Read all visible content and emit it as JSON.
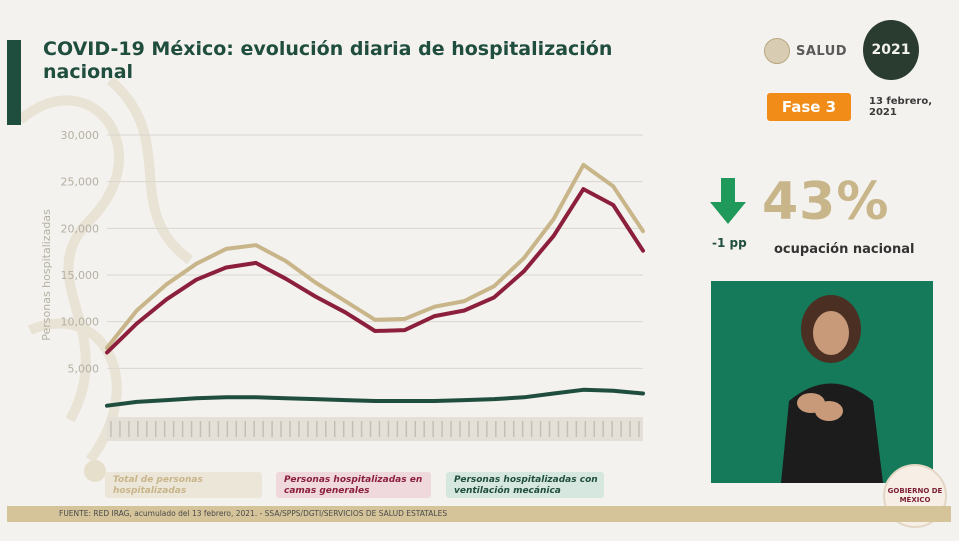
{
  "header": {
    "title": "COVID-19 México: evolución diaria de hospitalización nacional",
    "salud_label": "SALUD",
    "logo_year": "2021",
    "fase_label": "Fase 3",
    "date": "13 febrero, 2021"
  },
  "kpi": {
    "change": "-1 pp",
    "percent": "43%",
    "label": "ocupación nacional"
  },
  "legend": {
    "total": "Total de personas hospitalizadas",
    "general": "Personas hospitalizadas en camas generales",
    "ventilation": "Personas hospitalizadas con ventilación mecánica"
  },
  "footer": {
    "source": "FUENTE: RED IRAG, acumulado del 13 febrero, 2021.  -  SSA/SPPS/DGTI/SERVICIOS DE SALUD ESTATALES"
  },
  "gob_label": "GOBIERNO DE MÉXICO",
  "colors": {
    "total": "#c8b58a",
    "general": "#8b1f3c",
    "ventilation": "#1f4d3e",
    "accent": "#1f4d3e",
    "fase": "#f28c18"
  },
  "chart_data": {
    "type": "line",
    "ylabel": "Personas hospitalizadas",
    "ylim": [
      0,
      30000
    ],
    "yticks": [
      "5,000",
      "10,000",
      "15,000",
      "20,000",
      "25,000",
      "30,000"
    ],
    "ytick_values": [
      5000,
      10000,
      15000,
      20000,
      25000,
      30000
    ],
    "x_count": 19,
    "series": [
      {
        "name": "Total de personas hospitalizadas",
        "values": [
          7200,
          11200,
          14000,
          16200,
          17800,
          18200,
          16500,
          14200,
          12200,
          10200,
          10300,
          11600,
          12200,
          13800,
          16800,
          21000,
          26800,
          24500,
          19700
        ]
      },
      {
        "name": "Personas hospitalizadas en camas generales",
        "values": [
          6700,
          9800,
          12400,
          14500,
          15800,
          16300,
          14600,
          12700,
          11000,
          9000,
          9100,
          10600,
          11200,
          12600,
          15400,
          19200,
          24200,
          22500,
          17600
        ]
      },
      {
        "name": "Personas hospitalizadas con ventilación mecánica",
        "values": [
          1000,
          1400,
          1600,
          1800,
          1900,
          1900,
          1800,
          1700,
          1600,
          1500,
          1500,
          1500,
          1600,
          1700,
          1900,
          2300,
          2700,
          2600,
          2300
        ]
      }
    ]
  }
}
